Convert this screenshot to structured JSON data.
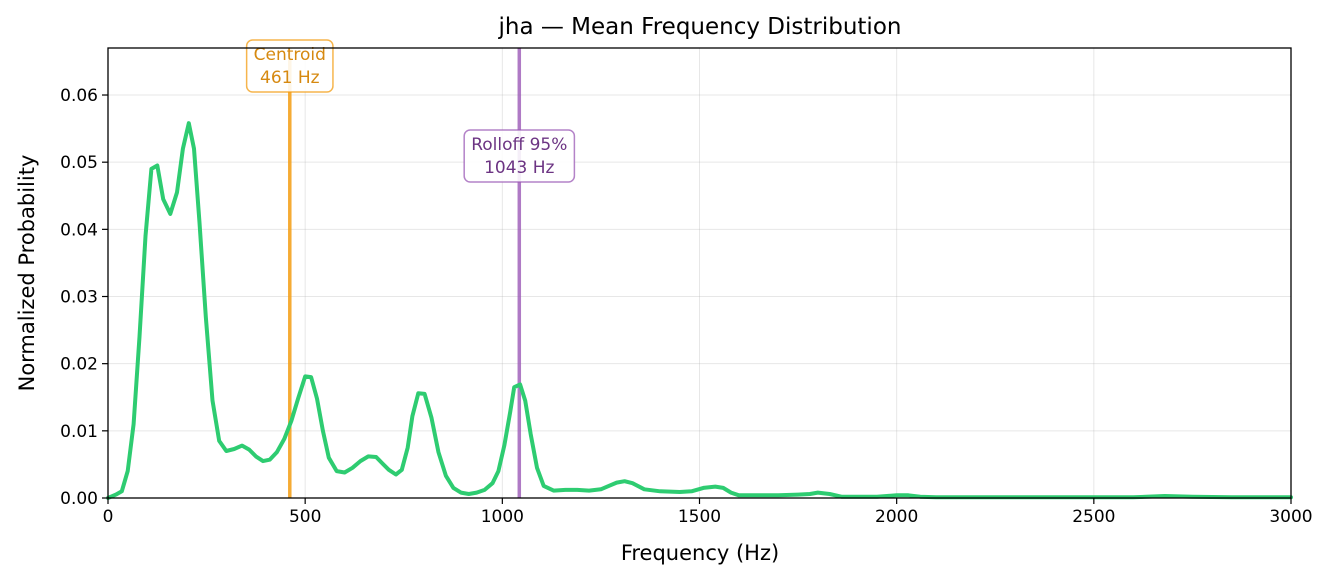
{
  "chart_data": {
    "type": "line",
    "title": "jha  —  Mean Frequency Distribution",
    "xlabel": "Frequency (Hz)",
    "ylabel": "Normalized Probability",
    "xlim": [
      0,
      3000
    ],
    "ylim": [
      0,
      0.067
    ],
    "xticks": [
      0,
      500,
      1000,
      1500,
      2000,
      2500,
      3000
    ],
    "yticks": [
      0.0,
      0.01,
      0.02,
      0.03,
      0.04,
      0.05,
      0.06
    ],
    "xtick_labels": [
      "0",
      "500",
      "1000",
      "1500",
      "2000",
      "2500",
      "3000"
    ],
    "ytick_labels": [
      "0.00",
      "0.01",
      "0.02",
      "0.03",
      "0.04",
      "0.05",
      "0.06"
    ],
    "grid": true,
    "series": [
      {
        "color": "#2ecc71",
        "x": [
          0,
          20,
          35,
          50,
          65,
          80,
          95,
          110,
          125,
          140,
          158,
          175,
          190,
          205,
          218,
          232,
          248,
          265,
          282,
          300,
          320,
          340,
          358,
          375,
          393,
          410,
          428,
          447,
          465,
          482,
          500,
          515,
          530,
          545,
          560,
          580,
          600,
          620,
          640,
          660,
          680,
          695,
          712,
          730,
          745,
          760,
          772,
          787,
          803,
          820,
          838,
          857,
          876,
          895,
          915,
          935,
          955,
          975,
          990,
          1005,
          1020,
          1030,
          1045,
          1058,
          1072,
          1088,
          1105,
          1130,
          1160,
          1190,
          1220,
          1250,
          1270,
          1290,
          1310,
          1330,
          1360,
          1400,
          1450,
          1480,
          1510,
          1540,
          1560,
          1580,
          1600,
          1700,
          1750,
          1780,
          1800,
          1830,
          1860,
          1900,
          1950,
          2000,
          2030,
          2060,
          2100,
          2200,
          2300,
          2400,
          2500,
          2600,
          2680,
          2750,
          2850,
          2950,
          3000
        ],
        "y": [
          0.0,
          0.0005,
          0.001,
          0.004,
          0.011,
          0.024,
          0.039,
          0.049,
          0.0495,
          0.0445,
          0.0423,
          0.0455,
          0.052,
          0.0558,
          0.052,
          0.041,
          0.027,
          0.0145,
          0.0085,
          0.007,
          0.0073,
          0.0078,
          0.0072,
          0.0062,
          0.0055,
          0.0057,
          0.0068,
          0.0088,
          0.0115,
          0.0148,
          0.0181,
          0.018,
          0.0148,
          0.01,
          0.006,
          0.004,
          0.0038,
          0.0045,
          0.0055,
          0.0062,
          0.0061,
          0.0052,
          0.0042,
          0.0035,
          0.0042,
          0.0075,
          0.0122,
          0.0156,
          0.0155,
          0.012,
          0.0068,
          0.0033,
          0.0015,
          0.0008,
          0.0006,
          0.0008,
          0.0012,
          0.0022,
          0.004,
          0.0078,
          0.0128,
          0.0165,
          0.0169,
          0.0145,
          0.0095,
          0.0045,
          0.0018,
          0.0011,
          0.0012,
          0.0012,
          0.0011,
          0.0013,
          0.0018,
          0.0023,
          0.0025,
          0.0022,
          0.0013,
          0.001,
          0.0009,
          0.001,
          0.0015,
          0.0017,
          0.0015,
          0.0008,
          0.0004,
          0.0004,
          0.0005,
          0.0006,
          0.0008,
          0.0006,
          0.0002,
          0.0002,
          0.0002,
          0.0004,
          0.0004,
          0.0002,
          0.0001,
          0.0001,
          0.0001,
          0.0001,
          0.0001,
          0.0001,
          0.0003,
          0.0002,
          0.0001,
          0.0001,
          0.0001
        ]
      }
    ],
    "markers": [
      {
        "name": "centroid",
        "x": 461,
        "label_line1": "Centroid",
        "label_line2": "461 Hz",
        "color": "#f39c12",
        "text_color": "#d68910"
      },
      {
        "name": "rolloff",
        "x": 1043,
        "label_line1": "Rolloff 95%",
        "label_line2": "1043 Hz",
        "color": "#9b59b6",
        "text_color": "#6c3483"
      }
    ]
  }
}
